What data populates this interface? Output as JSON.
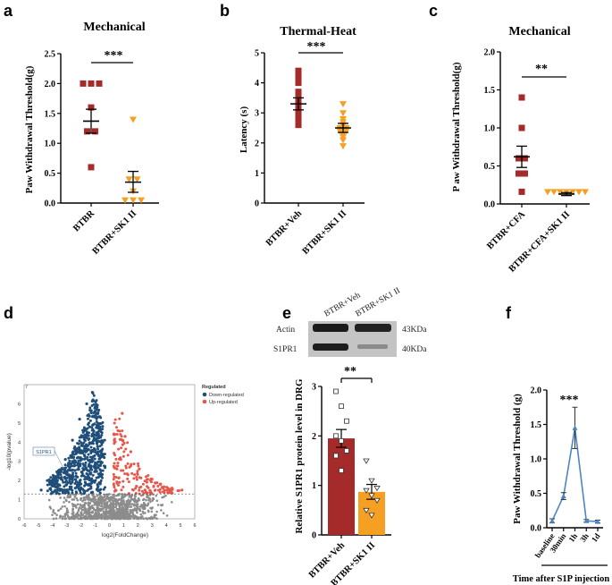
{
  "panels": {
    "a": {
      "letter": "a",
      "title": "Mechanical",
      "ylabel": "Paw Withdrawal Threshold(g)",
      "sig": "***"
    },
    "b": {
      "letter": "b",
      "title": "Thermal-Heat",
      "ylabel": "Latency (s)",
      "sig": "***"
    },
    "c": {
      "letter": "c",
      "title": "Mechanical",
      "ylabel": "P aw Withdrawal Threshold(g)",
      "sig": "**"
    },
    "d": {
      "letter": "d",
      "xlabel": "log2(FoldChange)",
      "ylabel": "-log10(pvalue)",
      "legend_title": "Regulated",
      "legend_down": "Down-regulated",
      "legend_up": "Up-regulated",
      "gene_label": "S1PR1"
    },
    "e": {
      "letter": "e",
      "ylabel": "Relative S1PR1 protein level in DRG",
      "sig": "**",
      "blot": {
        "lane1": "BTBR+Veh",
        "lane2": "BTBR+SK1 II",
        "row1": "Actin",
        "row2": "S1PR1",
        "kda1": "43KDa",
        "kda2": "40KDa"
      }
    },
    "f": {
      "letter": "f",
      "ylabel": "Paw Withdrawal Threshold  (g)",
      "xlabel": "Time after S1P injection",
      "sig": "***"
    }
  },
  "colors": {
    "red": "#a52a2a",
    "orange": "#f5a023",
    "navy": "#1f4e79",
    "uplight": "#e8564a",
    "grey": "#8c8c8c",
    "line": "#4a86c5"
  },
  "chart_data": [
    {
      "id": "a",
      "type": "scatter",
      "title": "Mechanical",
      "ylabel": "Paw Withdrawal Threshold(g)",
      "categories": [
        "BTBR",
        "BTBR+SK1 II"
      ],
      "ylim": [
        0,
        2.5
      ],
      "yticks": [
        0.0,
        0.5,
        1.0,
        1.5,
        2.0,
        2.5
      ],
      "series": [
        {
          "name": "BTBR",
          "mean": 1.37,
          "sem_low": 1.17,
          "sem_high": 1.57,
          "points": [
            2.0,
            2.0,
            2.0,
            1.6,
            1.2,
            1.2,
            0.6
          ]
        },
        {
          "name": "BTBR+SK1 II",
          "mean": 0.35,
          "sem_low": 0.18,
          "sem_high": 0.53,
          "points": [
            1.4,
            0.4,
            0.4,
            0.2,
            0.05,
            0.05,
            0.05
          ]
        }
      ],
      "significance": "***"
    },
    {
      "id": "b",
      "type": "scatter",
      "title": "Thermal-Heat",
      "ylabel": "Latency (s)",
      "categories": [
        "BTBR+Veh",
        "BTBR+SK1 II"
      ],
      "ylim": [
        0,
        5
      ],
      "yticks": [
        0,
        1,
        2,
        3,
        4,
        5
      ],
      "series": [
        {
          "name": "BTBR+Veh",
          "mean": 3.3,
          "sem_low": 3.1,
          "sem_high": 3.5,
          "points": [
            4.4,
            4.2,
            4.0,
            3.7,
            3.5,
            3.4,
            3.3,
            3.2,
            3.1,
            3.0,
            2.9,
            2.8,
            2.6
          ]
        },
        {
          "name": "BTBR+SK1 II",
          "mean": 2.5,
          "sem_low": 2.35,
          "sem_high": 2.65,
          "points": [
            3.3,
            3.0,
            2.8,
            2.7,
            2.6,
            2.5,
            2.5,
            2.4,
            2.4,
            2.3,
            2.2,
            2.1,
            1.9
          ]
        }
      ],
      "significance": "***"
    },
    {
      "id": "c",
      "type": "scatter",
      "title": "Mechanical",
      "ylabel": "P aw Withdrawal Threshold(g)",
      "categories": [
        "BTBR+CFA",
        "BTBR+CFA+SK1 II"
      ],
      "ylim": [
        0,
        2.0
      ],
      "yticks": [
        0.0,
        0.5,
        1.0,
        1.5,
        2.0
      ],
      "series": [
        {
          "name": "BTBR+CFA",
          "mean": 0.62,
          "sem_low": 0.48,
          "sem_high": 0.76,
          "points": [
            1.4,
            1.0,
            0.6,
            0.6,
            0.4,
            0.4,
            0.16
          ]
        },
        {
          "name": "BTBR+CFA+SK1 II",
          "mean": 0.13,
          "sem_low": 0.11,
          "sem_high": 0.15,
          "points": [
            0.16,
            0.16,
            0.16,
            0.16,
            0.16,
            0.16,
            0.16
          ]
        }
      ],
      "significance": "**"
    },
    {
      "id": "d",
      "type": "scatter",
      "title": "",
      "xlabel": "log2(FoldChange)",
      "ylabel": "-log10(pvalue)",
      "xlim": [
        -6,
        6
      ],
      "ylim": [
        0,
        7
      ],
      "xticks": [
        -6,
        -5,
        -4,
        -3,
        -2,
        -1,
        0,
        1,
        2,
        3,
        4,
        5,
        6
      ],
      "yticks": [
        0,
        1,
        2,
        3,
        4,
        5,
        6,
        7
      ],
      "threshold": 1.3,
      "legend": [
        "Down-regulated",
        "Up-regulated"
      ],
      "annotation": "S1PR1",
      "series": [
        {
          "name": "Down-regulated",
          "points": [
            [
              -1.2,
              6.6
            ],
            [
              -1.6,
              6.0
            ],
            [
              -0.9,
              5.7
            ],
            [
              -2.1,
              5.2
            ],
            [
              -1.4,
              4.8
            ],
            [
              -0.7,
              4.6
            ],
            [
              -2.6,
              4.1
            ],
            [
              -1.9,
              3.9
            ],
            [
              -1.0,
              3.6
            ],
            [
              -3.1,
              3.1
            ],
            [
              -2.2,
              2.9
            ],
            [
              -1.3,
              2.7
            ],
            [
              -0.6,
              2.5
            ],
            [
              -3.6,
              2.2
            ],
            [
              -2.8,
              2.0
            ],
            [
              -1.7,
              1.9
            ],
            [
              -4.2,
              1.8
            ],
            [
              -0.8,
              1.7
            ],
            [
              -2.4,
              1.6
            ],
            [
              -4.8,
              1.5
            ]
          ]
        },
        {
          "name": "Up-regulated",
          "points": [
            [
              0.9,
              5.5
            ],
            [
              0.6,
              4.6
            ],
            [
              1.1,
              4.3
            ],
            [
              1.5,
              3.5
            ],
            [
              0.8,
              3.1
            ],
            [
              2.1,
              2.6
            ],
            [
              1.3,
              2.3
            ],
            [
              2.9,
              2.0
            ],
            [
              0.7,
              1.9
            ],
            [
              3.6,
              1.8
            ],
            [
              1.9,
              1.7
            ],
            [
              4.4,
              1.6
            ],
            [
              2.5,
              1.5
            ],
            [
              5.1,
              1.5
            ]
          ]
        }
      ]
    },
    {
      "id": "e",
      "type": "bar",
      "ylabel": "Relative S1PR1 protein level in DRG",
      "categories": [
        "BTBR+Veh",
        "BTBR+SK1 II"
      ],
      "values": [
        1.95,
        0.87
      ],
      "sem": [
        0.18,
        0.15
      ],
      "ylim": [
        0,
        3
      ],
      "yticks": [
        0,
        1,
        2,
        3
      ],
      "points": [
        [
          2.9,
          2.6,
          2.3,
          2.0,
          1.9,
          1.7,
          1.6,
          1.3
        ],
        [
          1.5,
          1.1,
          0.95,
          0.9,
          0.8,
          0.7,
          0.5,
          0.4
        ]
      ],
      "significance": "**"
    },
    {
      "id": "f",
      "type": "line",
      "ylabel": "Paw Withdrawal Threshold  (g)",
      "xlabel": "Time after S1P injection",
      "categories": [
        "baseline",
        "30min",
        "1h",
        "3h",
        "1d"
      ],
      "values": [
        0.1,
        0.46,
        1.45,
        0.1,
        0.09
      ],
      "sem": [
        0.03,
        0.05,
        0.3,
        0.02,
        0.02
      ],
      "ylim": [
        0,
        2.0
      ],
      "yticks": [
        0.0,
        0.5,
        1.0,
        1.5,
        2.0
      ],
      "significance": "***"
    }
  ]
}
